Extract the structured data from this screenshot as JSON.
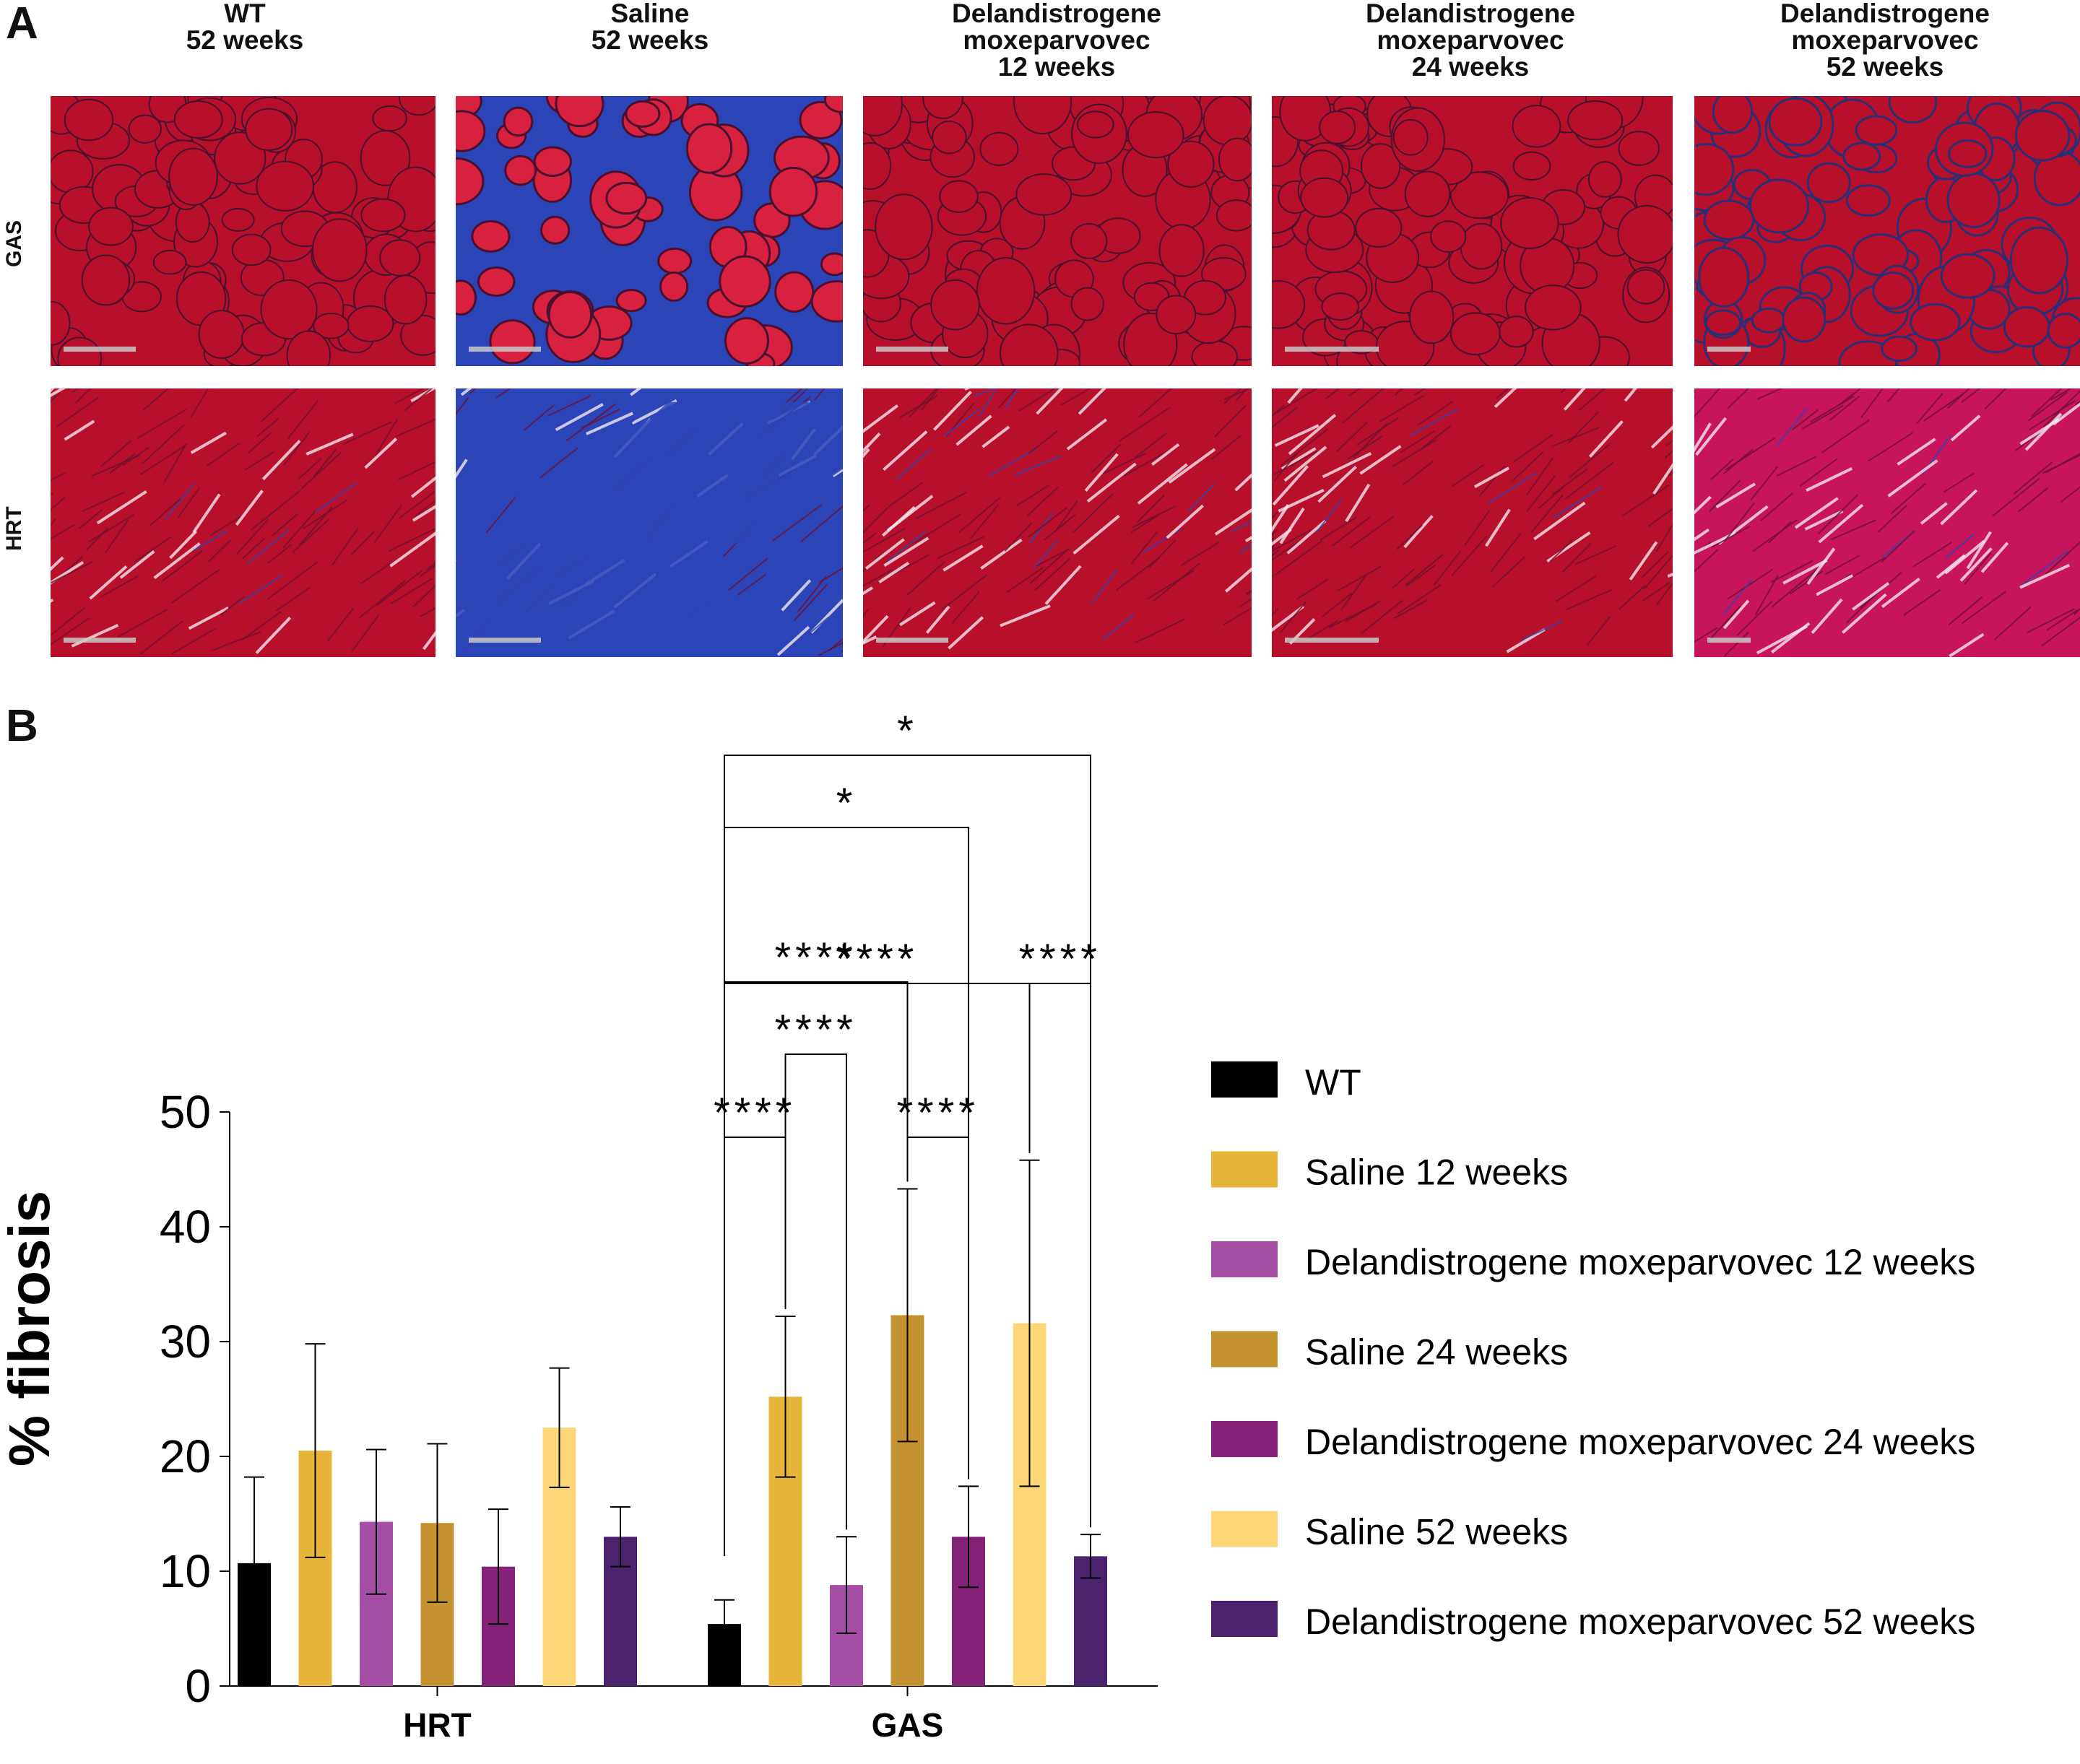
{
  "panel_a": {
    "letter": "A",
    "columns": [
      {
        "line1": "WT",
        "line2": "52 weeks",
        "line3": ""
      },
      {
        "line1": "Saline",
        "line2": "52 weeks",
        "line3": ""
      },
      {
        "line1": "Delandistrogene",
        "line2": "moxeparvovec",
        "line3": "12 weeks"
      },
      {
        "line1": "Delandistrogene",
        "line2": "moxeparvovec",
        "line3": "24 weeks"
      },
      {
        "line1": "Delandistrogene",
        "line2": "moxeparvovec",
        "line3": "52 weeks"
      }
    ],
    "rows": [
      {
        "label": "GAS"
      },
      {
        "label": "HRT"
      }
    ],
    "colors": {
      "muscle": "#b8102a",
      "fibrosis": "#2b45b8",
      "muscle_heart": "#c8145a"
    }
  },
  "panel_b": {
    "letter": "B"
  },
  "chart_data": {
    "type": "bar",
    "ylabel": "% fibrosis",
    "xlabel": "",
    "ylim": [
      0,
      50
    ],
    "yticks": [
      0,
      10,
      20,
      30,
      40,
      50
    ],
    "categories": [
      "HRT",
      "GAS"
    ],
    "series": [
      {
        "name": "WT",
        "color": "#000000",
        "values": [
          10.7,
          5.4
        ],
        "errors": [
          7.5,
          2.1
        ]
      },
      {
        "name": "Saline 12 weeks",
        "color": "#e6b53a",
        "values": [
          20.5,
          25.2
        ],
        "errors": [
          9.3,
          7.0
        ]
      },
      {
        "name": "Delandistrogene moxeparvovec 12 weeks",
        "color": "#a64ea6",
        "values": [
          14.3,
          8.8
        ],
        "errors": [
          6.3,
          4.2
        ]
      },
      {
        "name": "Saline 24 weeks",
        "color": "#c49330",
        "values": [
          14.2,
          32.3
        ],
        "errors": [
          6.9,
          11.0
        ]
      },
      {
        "name": "Delandistrogene moxeparvovec 24 weeks",
        "color": "#832276",
        "values": [
          10.4,
          13.0
        ],
        "errors": [
          5.0,
          4.4
        ]
      },
      {
        "name": "Saline 52 weeks",
        "color": "#fcd677",
        "values": [
          22.5,
          31.6
        ],
        "errors": [
          5.2,
          14.2
        ]
      },
      {
        "name": "Delandistrogene moxeparvovec 52 weeks",
        "color": "#4d226d",
        "values": [
          13.0,
          11.3
        ],
        "errors": [
          2.6,
          1.9
        ]
      }
    ],
    "significance": [
      {
        "category": "GAS",
        "from": 0,
        "to": 1,
        "label": "****"
      },
      {
        "category": "GAS",
        "from": 1,
        "to": 2,
        "label": "****"
      },
      {
        "category": "GAS",
        "from": 0,
        "to": 3,
        "label": "****"
      },
      {
        "category": "GAS",
        "from": 3,
        "to": 4,
        "label": "****"
      },
      {
        "category": "GAS",
        "from": 0,
        "to": 5,
        "label": "****"
      },
      {
        "category": "GAS",
        "from": 5,
        "to": 6,
        "label": "****"
      },
      {
        "category": "GAS",
        "from": 0,
        "to": 4,
        "label": "*"
      },
      {
        "category": "GAS",
        "from": 0,
        "to": 6,
        "label": "*"
      }
    ],
    "legend_position": "right"
  }
}
